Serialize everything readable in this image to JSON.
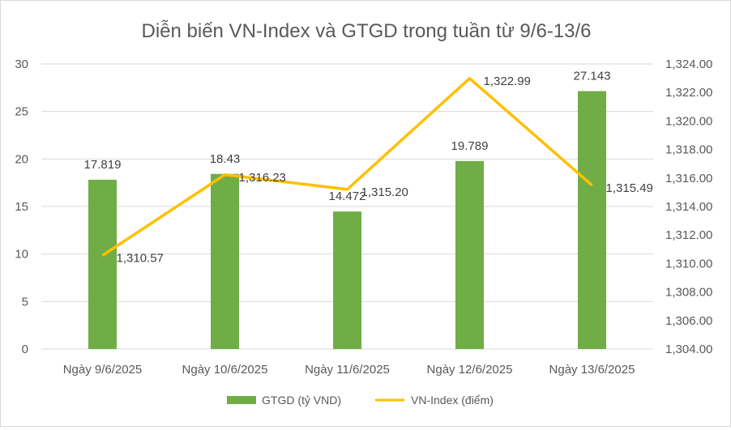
{
  "chart_data": {
    "type": "bar+line",
    "title": "Diễn biến VN-Index và GTGD trong tuần từ 9/6-13/6",
    "categories": [
      "Ngày 9/6/2025",
      "Ngày 10/6/2025",
      "Ngày 11/6/2025",
      "Ngày 12/6/2025",
      "Ngày 13/6/2025"
    ],
    "series": [
      {
        "name": "GTGD (tỷ VND)",
        "type": "bar",
        "axis": "left",
        "color": "#70AD47",
        "values": [
          17.819,
          18.43,
          14.472,
          19.789,
          27.143
        ],
        "labels": [
          "17.819",
          "18.43",
          "14.472",
          "19.789",
          "27.143"
        ]
      },
      {
        "name": "VN-Index (điểm)",
        "type": "line",
        "axis": "right",
        "color": "#FFC000",
        "values": [
          1310.57,
          1316.23,
          1315.2,
          1322.99,
          1315.49
        ],
        "labels": [
          "1,310.57",
          "1,316.23",
          "1,315.20",
          "1,322.99",
          "1,315.49"
        ]
      }
    ],
    "left_axis": {
      "ylim": [
        0,
        30
      ],
      "ticks": [
        "0",
        "5",
        "10",
        "15",
        "20",
        "25",
        "30"
      ]
    },
    "right_axis": {
      "ylim": [
        1304,
        1324
      ],
      "ticks": [
        "1,304.00",
        "1,306.00",
        "1,308.00",
        "1,310.00",
        "1,312.00",
        "1,314.00",
        "1,316.00",
        "1,318.00",
        "1,320.00",
        "1,322.00",
        "1,324.00"
      ]
    },
    "grid": true,
    "legend_position": "bottom"
  }
}
